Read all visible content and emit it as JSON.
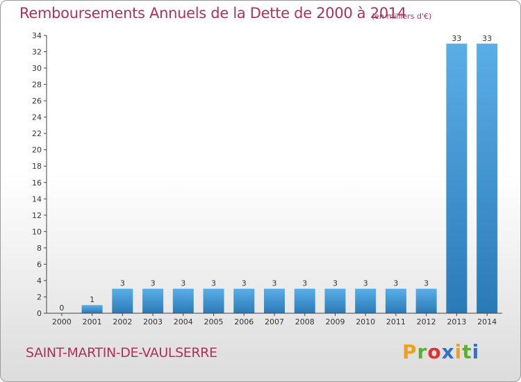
{
  "header": {
    "title": "Remboursements Annuels de la Dette de 2000 à 2014",
    "subtitle": "(en milliers d'€)"
  },
  "footer": {
    "commune": "SAINT-MARTIN-DE-VAULSERRE",
    "logo": [
      "P",
      "r",
      "o",
      "x",
      "i",
      "t",
      "i"
    ],
    "logo_colors": [
      "#f0a020",
      "#5cb030",
      "#e03030",
      "#3070d0",
      "#f0a020",
      "#5cb030",
      "#3070d0"
    ]
  },
  "colors": {
    "title": "#b0305a",
    "bar_light": "#5aaee6",
    "bar_dark": "#2a7ab8",
    "axis": "#444444"
  },
  "chart_data": {
    "type": "bar",
    "title": "Remboursements Annuels de la Dette de 2000 à 2014",
    "subtitle": "(en milliers d'€)",
    "categories": [
      "2000",
      "2001",
      "2002",
      "2003",
      "2004",
      "2005",
      "2006",
      "2007",
      "2008",
      "2009",
      "2010",
      "2011",
      "2012",
      "2013",
      "2014"
    ],
    "values": [
      0,
      1,
      3,
      3,
      3,
      3,
      3,
      3,
      3,
      3,
      3,
      3,
      3,
      33,
      33
    ],
    "ylim": [
      0,
      34
    ],
    "yticks": [
      0,
      2,
      4,
      6,
      8,
      10,
      12,
      14,
      16,
      18,
      20,
      22,
      24,
      26,
      28,
      30,
      32,
      34
    ],
    "xlabel": "",
    "ylabel": "",
    "grid": false,
    "legend": "none"
  }
}
